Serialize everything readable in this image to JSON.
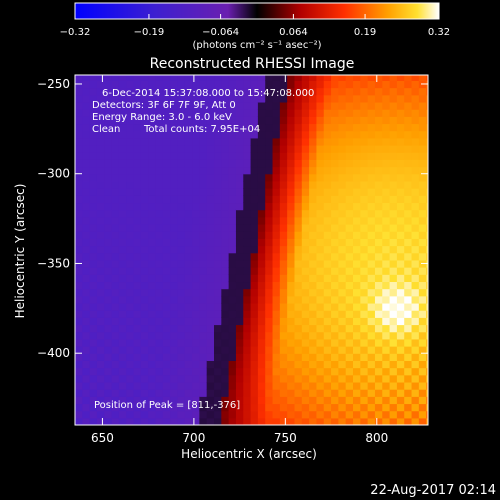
{
  "chart_data": {
    "type": "heatmap",
    "title": "Reconstructed RHESSI Image",
    "xlabel": "Heliocentric X (arcsec)",
    "ylabel": "Heliocentric Y (arcsec)",
    "xlim": [
      635,
      828
    ],
    "ylim": [
      -440,
      -245
    ],
    "x_ticks": [
      650,
      700,
      750,
      800
    ],
    "y_ticks": [
      -250,
      -300,
      -350,
      -400
    ],
    "colorbar": {
      "vmin": -0.32,
      "vmax": 0.32,
      "ticks": [
        -0.32,
        -0.19,
        -0.064,
        0.064,
        0.19,
        0.32
      ],
      "tick_labels": [
        "−0.32",
        "−0.19",
        "−0.064",
        "0.064",
        "0.19",
        "0.32"
      ],
      "label": "(photons cm⁻² s⁻¹ asec⁻²)"
    },
    "annotations": [
      "6-Dec-2014 15:37:08.000 to 15:47:08.000",
      "Detectors: 3F 6F 7F 9F, Att 0",
      "Energy Range: 3.0 - 6.0 keV",
      "Clean",
      "Total counts: 7.95E+04",
      "Position of Peak = [811,-376]"
    ],
    "peak": {
      "x": 811,
      "y": -376
    },
    "source": {
      "limb_x_at_top": 752,
      "limb_x_at_bottom": 714,
      "center_x": 812,
      "center_y": -350,
      "radius": 85
    }
  },
  "footer": {
    "timestamp": "22-Aug-2017 02:14"
  }
}
